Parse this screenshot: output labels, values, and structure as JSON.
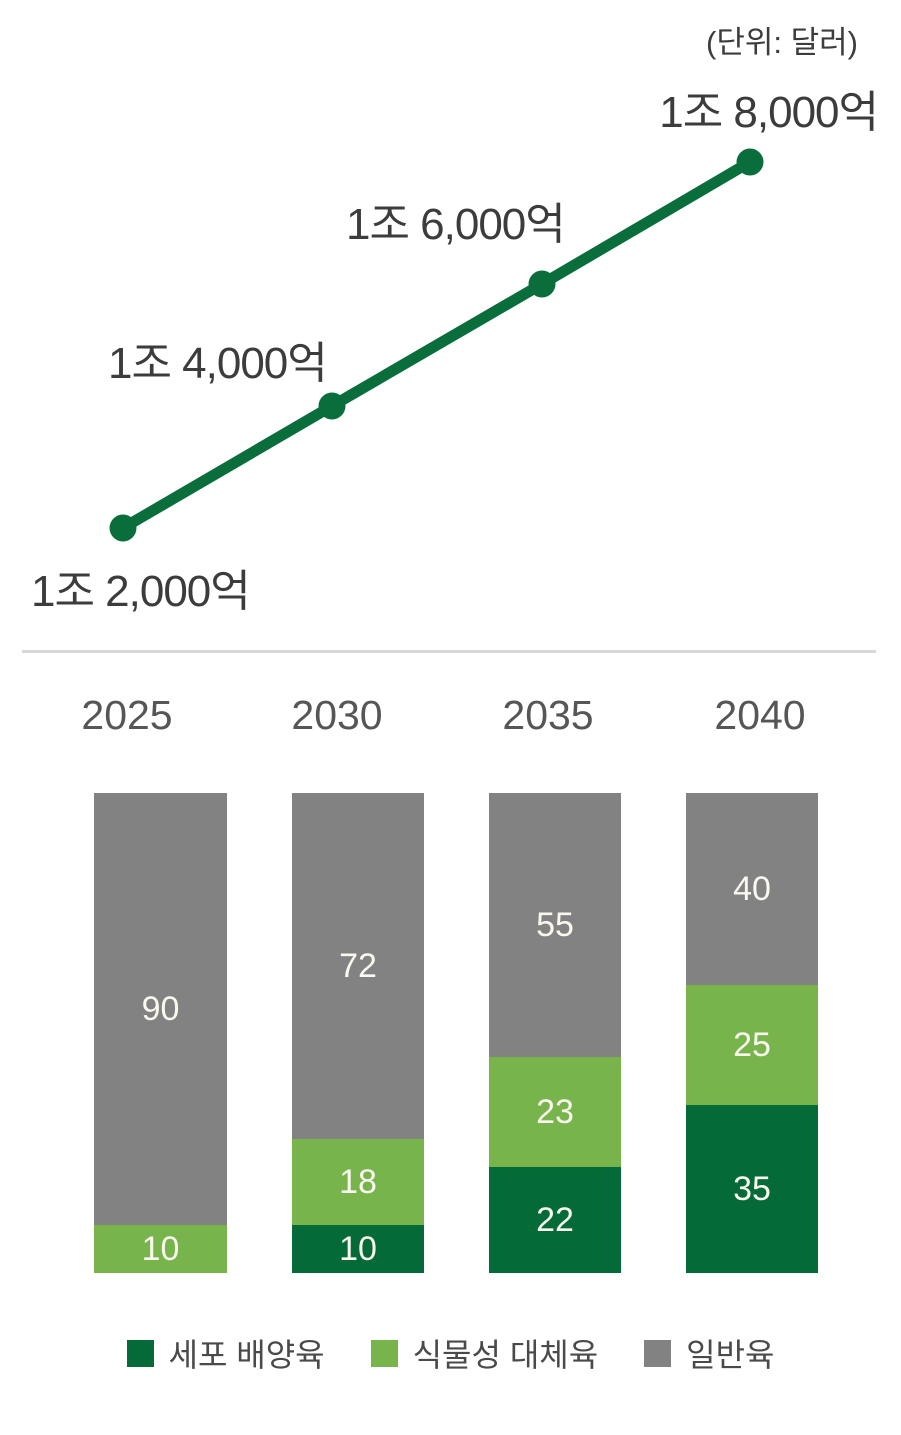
{
  "unit_note": "(단위: 달러)",
  "colors": {
    "line_green": "#0a6e3c",
    "cell_cultured_dark_green": "#046a38",
    "plant_based_light_green": "#77b54c",
    "conventional_gray": "#828282",
    "divider_gray": "#d8d8d8",
    "label_dark_gray": "#3c3c3c",
    "year_gray": "#565656"
  },
  "chart_data": [
    {
      "type": "line",
      "title": "",
      "x": [
        "2025",
        "2030",
        "2035",
        "2040"
      ],
      "values": [
        1.2,
        1.4,
        1.6,
        1.8
      ],
      "unit": "조 달러 (trillion dollars)",
      "point_labels": [
        "1조 2,000억",
        "1조 4,000억",
        "1조 6,000억",
        "1조 8,000억"
      ],
      "unit_note": "(단위: 달러)",
      "line_color": "#0a6e3c",
      "grid": false,
      "ylim": [
        1.1,
        1.9
      ]
    },
    {
      "type": "bar",
      "stacked": true,
      "categories": [
        "2025",
        "2030",
        "2035",
        "2040"
      ],
      "series": [
        {
          "name": "세포 배양육",
          "color": "#046a38",
          "values": [
            0,
            10,
            22,
            35
          ]
        },
        {
          "name": "식물성 대체육",
          "color": "#77b54c",
          "values": [
            10,
            18,
            23,
            25
          ]
        },
        {
          "name": "일반육",
          "color": "#828282",
          "values": [
            90,
            72,
            55,
            40
          ]
        }
      ],
      "ylim": [
        0,
        100
      ],
      "grid": false,
      "legend_position": "bottom"
    }
  ]
}
